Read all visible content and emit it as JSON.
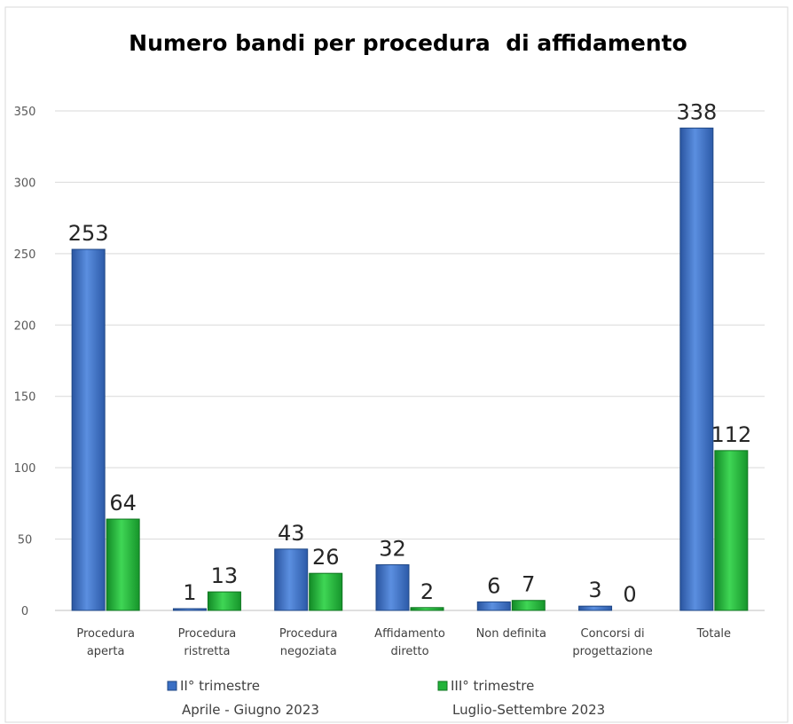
{
  "chart_data": {
    "type": "bar",
    "title": "Numero bandi per procedura  di affidamento",
    "xlabel": "",
    "ylabel": "",
    "ylim": [
      0,
      350
    ],
    "yticks": [
      0,
      50,
      100,
      150,
      200,
      250,
      300,
      350
    ],
    "grid": true,
    "legend_position": "bottom",
    "categories": [
      [
        "Procedura",
        "aperta"
      ],
      [
        "Procedura",
        "ristretta"
      ],
      [
        "Procedura",
        "negoziata"
      ],
      [
        "Affidamento",
        "diretto"
      ],
      [
        "Non definita"
      ],
      [
        "Concorsi di",
        "progettazione"
      ],
      [
        "Totale"
      ]
    ],
    "series": [
      {
        "name": "II° trimestre",
        "subtitle": "Aprile - Giugno 2023",
        "color": "#3a6fc4",
        "values": [
          253,
          1,
          43,
          32,
          6,
          3,
          338
        ]
      },
      {
        "name": "III° trimestre",
        "subtitle": "Luglio-Settembre 2023",
        "color": "#22b33a",
        "values": [
          64,
          13,
          26,
          2,
          7,
          0,
          112
        ]
      }
    ]
  }
}
